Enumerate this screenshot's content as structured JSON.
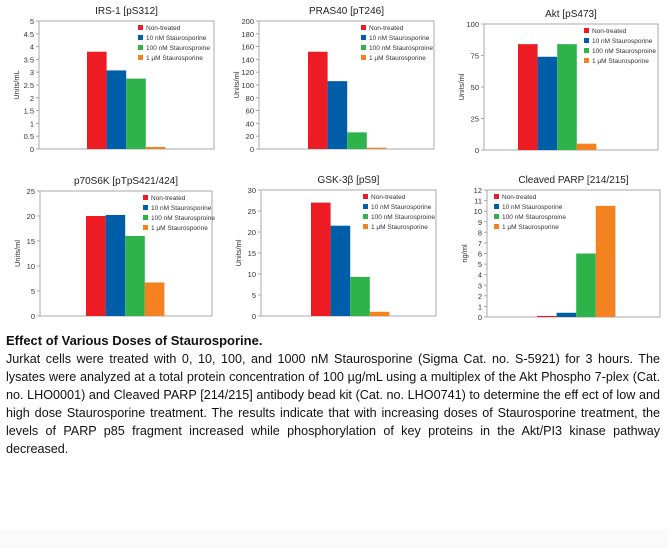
{
  "colors": {
    "non_treated": "#ed1c24",
    "nM10": "#005da8",
    "nM100": "#2db34a",
    "uM1": "#f58220",
    "axis": "#999999"
  },
  "legend": [
    "Non-treated",
    "10 nM Staurosporine",
    "100 nM Staurosproine",
    "1 µM Staurosporine"
  ],
  "chart_data": [
    {
      "type": "bar",
      "title": "IRS-1 [pS312]",
      "ylabel": "Units/mL",
      "ylim": [
        0,
        5
      ],
      "ticks": [
        "0",
        "0.5",
        "1",
        "1.5",
        "2",
        "2.5",
        "3",
        "3.5",
        "4",
        "4.5",
        "5"
      ],
      "tick_values": [
        0,
        0.5,
        1,
        1.5,
        2,
        2.5,
        3,
        3.5,
        4,
        4.5,
        5
      ],
      "values": [
        3.8,
        3.07,
        2.75,
        0.08
      ],
      "legend_position": "top-right"
    },
    {
      "type": "bar",
      "title": "PRAS40 [pT246]",
      "ylabel": "Units/ml",
      "ylim": [
        0,
        200
      ],
      "ticks": [
        "0",
        "20",
        "40",
        "60",
        "80",
        "100",
        "120",
        "140",
        "160",
        "180",
        "200"
      ],
      "tick_values": [
        0,
        20,
        40,
        60,
        80,
        100,
        120,
        140,
        160,
        180,
        200
      ],
      "values": [
        152,
        106,
        26,
        2
      ],
      "legend_position": "top-right"
    },
    {
      "type": "bar",
      "title": "Akt [pS473]",
      "ylabel": "Units/ml",
      "ylim": [
        0,
        100
      ],
      "ticks": [
        "0",
        "25",
        "50",
        "75",
        "100"
      ],
      "tick_values": [
        0,
        25,
        50,
        75,
        100
      ],
      "values": [
        84,
        74,
        84,
        5
      ],
      "legend_position": "top-right"
    },
    {
      "type": "bar",
      "title": "p70S6K [pTpS421/424]",
      "ylabel": "Units/ml",
      "ylim": [
        0,
        25
      ],
      "ticks": [
        "0",
        "5",
        "10",
        "15",
        "20",
        "25"
      ],
      "tick_values": [
        0,
        5,
        10,
        15,
        20,
        25
      ],
      "values": [
        20,
        20.2,
        16,
        6.7
      ],
      "legend_position": "top-right"
    },
    {
      "type": "bar",
      "title": "GSK-3β [pS9]",
      "ylabel": "Units/ml",
      "ylim": [
        0,
        30
      ],
      "ticks": [
        "0",
        "5",
        "10",
        "15",
        "20",
        "25",
        "30"
      ],
      "tick_values": [
        0,
        5,
        10,
        15,
        20,
        25,
        30
      ],
      "values": [
        27,
        21.5,
        9.3,
        1
      ],
      "legend_position": "top-right"
    },
    {
      "type": "bar",
      "title": "Cleaved PARP [214/215]",
      "ylabel": "ng/ml",
      "ylim": [
        0,
        12
      ],
      "ticks": [
        "0",
        "1",
        "2",
        "3",
        "4",
        "5",
        "6",
        "7",
        "8",
        "9",
        "10",
        "11",
        "12"
      ],
      "tick_values": [
        0,
        1,
        2,
        3,
        4,
        5,
        6,
        7,
        8,
        9,
        10,
        11,
        12
      ],
      "values": [
        0.1,
        0.4,
        6,
        10.5
      ],
      "legend_position": "top-left"
    }
  ],
  "caption": {
    "title": "Effect of Various Doses of Staurosporine.",
    "body": "Jurkat cells were treated with 0, 10, 100, and 1000 nM Staurosporine (Sigma Cat. no. S-5921) for 3 hours. The lysates were analyzed at a total protein concentration of 100 µg/mL using a multiplex of the Akt Phospho 7-plex (Cat. no. LHO0001) and Cleaved PARP [214/215] antibody bead kit (Cat. no. LHO0741) to determine the eff ect of low and high dose Staurosporine treatment. The results indicate that with increasing doses of Staurosporine treatment, the levels of PARP p85 fragment increased while phosphorylation of key proteins in the Akt/PI3 kinase pathway decreased."
  }
}
